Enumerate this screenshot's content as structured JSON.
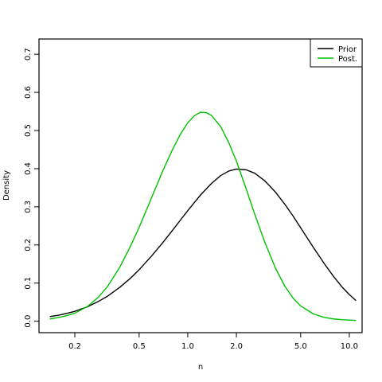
{
  "chart_data": {
    "type": "line",
    "title": "",
    "xlabel": "n",
    "ylabel": "Density",
    "x_scale": "log",
    "xlim": [
      0.12,
      12.0
    ],
    "ylim": [
      -0.03,
      0.74
    ],
    "x_ticks": [
      {
        "value": 0.2,
        "label": "0.2"
      },
      {
        "value": 0.5,
        "label": "0.5"
      },
      {
        "value": 1.0,
        "label": "1.0"
      },
      {
        "value": 2.0,
        "label": "2.0"
      },
      {
        "value": 5.0,
        "label": "5.0"
      },
      {
        "value": 10.0,
        "label": "10.0"
      }
    ],
    "y_ticks": [
      {
        "value": 0.0,
        "label": "0.0"
      },
      {
        "value": 0.1,
        "label": "0.1"
      },
      {
        "value": 0.2,
        "label": "0.2"
      },
      {
        "value": 0.3,
        "label": "0.3"
      },
      {
        "value": 0.4,
        "label": "0.4"
      },
      {
        "value": 0.5,
        "label": "0.5"
      },
      {
        "value": 0.6,
        "label": "0.6"
      },
      {
        "value": 0.7,
        "label": "0.7"
      }
    ],
    "grid": false,
    "legend": {
      "position": "top-right"
    },
    "series": [
      {
        "name": "Prior",
        "color": "#000000",
        "x": [
          0.14,
          0.16,
          0.18,
          0.2,
          0.24,
          0.28,
          0.32,
          0.38,
          0.44,
          0.5,
          0.6,
          0.7,
          0.8,
          0.9,
          1.0,
          1.2,
          1.4,
          1.6,
          1.8,
          2.0,
          2.3,
          2.6,
          3.0,
          3.5,
          4.0,
          4.5,
          5.0,
          6.0,
          7.0,
          8.0,
          9.0,
          10.0,
          11.0
        ],
        "y": [
          0.012,
          0.016,
          0.021,
          0.026,
          0.038,
          0.052,
          0.066,
          0.089,
          0.112,
          0.135,
          0.172,
          0.206,
          0.237,
          0.265,
          0.29,
          0.331,
          0.361,
          0.382,
          0.394,
          0.399,
          0.397,
          0.388,
          0.368,
          0.338,
          0.306,
          0.275,
          0.245,
          0.193,
          0.151,
          0.117,
          0.09,
          0.07,
          0.054
        ]
      },
      {
        "name": "Post.",
        "color": "#00c000",
        "x": [
          0.14,
          0.16,
          0.18,
          0.2,
          0.24,
          0.28,
          0.32,
          0.38,
          0.44,
          0.5,
          0.6,
          0.7,
          0.8,
          0.9,
          1.0,
          1.1,
          1.2,
          1.3,
          1.4,
          1.6,
          1.8,
          2.0,
          2.3,
          2.6,
          3.0,
          3.5,
          4.0,
          4.5,
          5.0,
          6.0,
          7.0,
          8.0,
          9.0,
          10.0,
          11.0
        ],
        "y": [
          0.006,
          0.01,
          0.015,
          0.021,
          0.039,
          0.063,
          0.092,
          0.142,
          0.195,
          0.246,
          0.326,
          0.394,
          0.448,
          0.49,
          0.52,
          0.539,
          0.548,
          0.547,
          0.54,
          0.51,
          0.467,
          0.42,
          0.347,
          0.28,
          0.207,
          0.138,
          0.091,
          0.06,
          0.04,
          0.019,
          0.01,
          0.006,
          0.004,
          0.003,
          0.002
        ]
      }
    ]
  }
}
